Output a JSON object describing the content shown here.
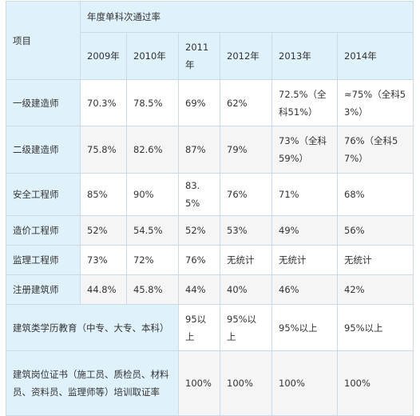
{
  "table": {
    "header": {
      "item_label": "项目",
      "group_label": "年度单科次通过率",
      "years": [
        "2009年",
        "2010年",
        "2011年",
        "2012年",
        "2013年",
        "2014年"
      ]
    },
    "rows": [
      {
        "label": "一级建造师",
        "values": [
          "70.3%",
          "78.5%",
          "69%",
          "62%",
          "72.5%（全科51%）",
          "≈75%（全科53%）"
        ]
      },
      {
        "label": "二级建造师",
        "values": [
          "75.8%",
          "82.6%",
          "87%",
          "79%",
          "73%（全科59%）",
          "76%（全科57%）"
        ]
      },
      {
        "label": "安全工程师",
        "values": [
          "85%",
          "90%",
          "83.5%",
          "76%",
          "71%",
          "68%"
        ]
      },
      {
        "label": "造价工程师",
        "values": [
          "52%",
          "54.5%",
          "52%",
          "53%",
          "49%",
          "56%"
        ]
      },
      {
        "label": "监理工程师",
        "values": [
          "73%",
          "72%",
          "76%",
          "无统计",
          "无统计",
          "无统计"
        ]
      },
      {
        "label": "注册建筑师",
        "values": [
          "44.8%",
          "45.8%",
          "44%",
          "40%",
          "46%",
          "42%"
        ]
      }
    ],
    "wide_rows": [
      {
        "label": "建筑类学历教育（中专、大专、本科）",
        "values": [
          "95以上",
          "95%以上",
          "95%以上",
          "95%以上"
        ]
      },
      {
        "label": "建筑岗位证书（施工员、质检员、材料员、资料员、监理师等）培训取证率",
        "values": [
          "100%",
          "100%",
          "100%",
          "100%"
        ]
      }
    ]
  }
}
